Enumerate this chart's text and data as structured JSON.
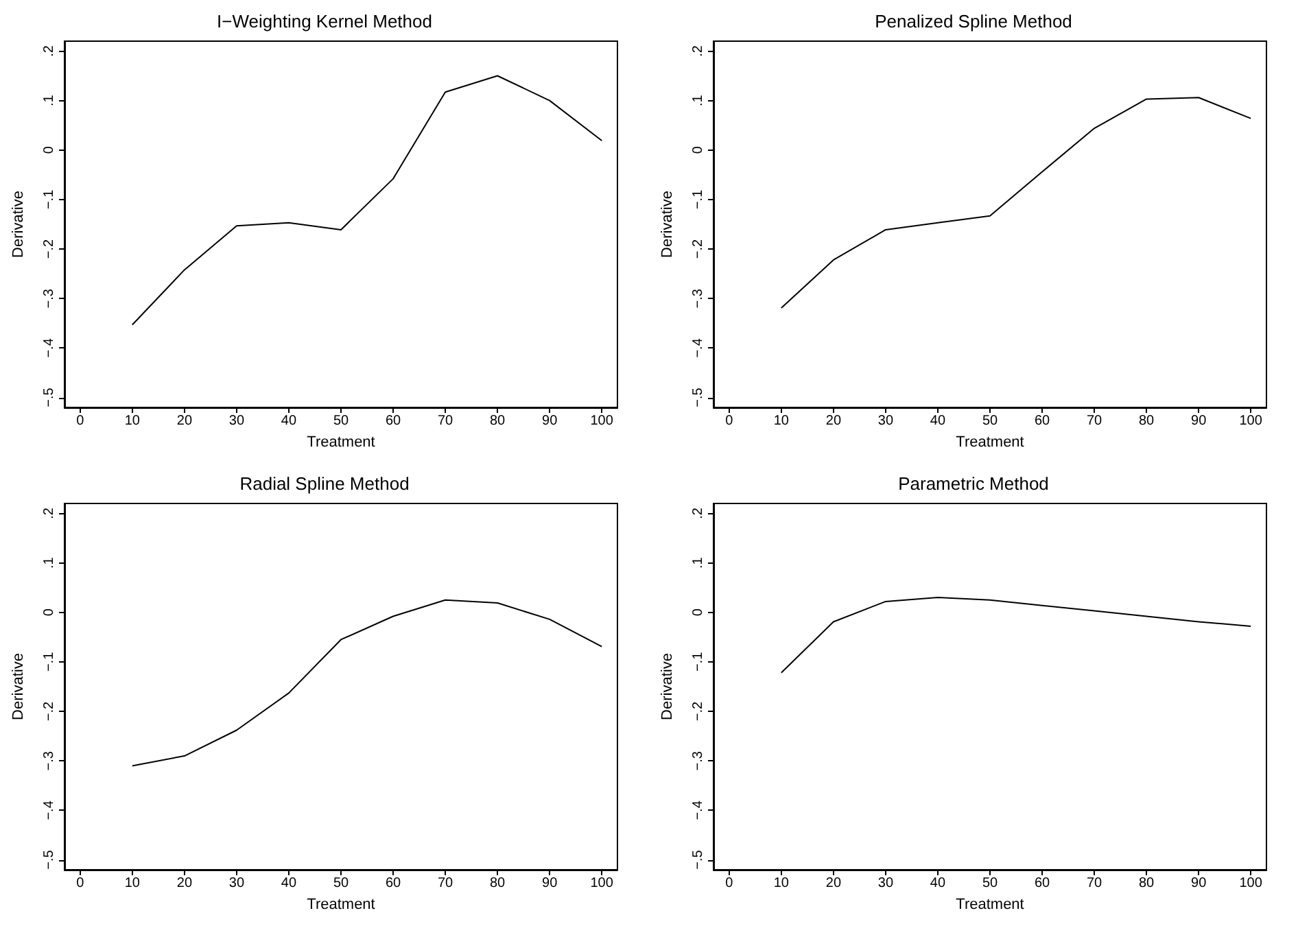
{
  "chart_data": [
    {
      "type": "line",
      "title": "I−Weighting Kernel Method",
      "xlabel": "Treatment",
      "ylabel": "Derivative",
      "x": [
        10,
        20,
        30,
        40,
        50,
        60,
        70,
        80,
        90,
        100
      ],
      "series": [
        {
          "color": "#000000",
          "values": [
            -0.353,
            -0.242,
            -0.153,
            -0.147,
            -0.161,
            -0.058,
            0.117,
            0.15,
            0.1,
            0.019
          ]
        }
      ],
      "xlim": [
        -3,
        103
      ],
      "xticks": [
        0,
        10,
        20,
        30,
        40,
        50,
        60,
        70,
        80,
        90,
        100
      ],
      "ylim": [
        -0.52,
        0.22
      ],
      "yticks": [
        {
          "value": -0.5,
          "label": "−.5"
        },
        {
          "value": -0.4,
          "label": "−.4"
        },
        {
          "value": -0.3,
          "label": "−.3"
        },
        {
          "value": -0.2,
          "label": "−.2"
        },
        {
          "value": -0.1,
          "label": "−.1"
        },
        {
          "value": 0,
          "label": "0"
        },
        {
          "value": 0.1,
          "label": ".1"
        },
        {
          "value": 0.2,
          "label": ".2"
        }
      ],
      "grid": false,
      "marker": "none",
      "line_style": "solid"
    },
    {
      "type": "line",
      "title": "Penalized Spline Method",
      "xlabel": "Treatment",
      "ylabel": "Derivative",
      "x": [
        10,
        20,
        30,
        40,
        50,
        60,
        70,
        80,
        90,
        100
      ],
      "series": [
        {
          "color": "#000000",
          "values": [
            -0.319,
            -0.222,
            -0.161,
            -0.147,
            -0.133,
            -0.044,
            0.044,
            0.103,
            0.106,
            0.064
          ]
        }
      ],
      "xlim": [
        -3,
        103
      ],
      "xticks": [
        0,
        10,
        20,
        30,
        40,
        50,
        60,
        70,
        80,
        90,
        100
      ],
      "ylim": [
        -0.52,
        0.22
      ],
      "yticks": [
        {
          "value": -0.5,
          "label": "−.5"
        },
        {
          "value": -0.4,
          "label": "−.4"
        },
        {
          "value": -0.3,
          "label": "−.3"
        },
        {
          "value": -0.2,
          "label": "−.2"
        },
        {
          "value": -0.1,
          "label": "−.1"
        },
        {
          "value": 0,
          "label": "0"
        },
        {
          "value": 0.1,
          "label": ".1"
        },
        {
          "value": 0.2,
          "label": ".2"
        }
      ],
      "grid": false,
      "marker": "none",
      "line_style": "solid"
    },
    {
      "type": "line",
      "title": "Radial Spline Method",
      "xlabel": "Treatment",
      "ylabel": "Derivative",
      "x": [
        10,
        20,
        30,
        40,
        50,
        60,
        70,
        80,
        90,
        100
      ],
      "series": [
        {
          "color": "#000000",
          "values": [
            -0.31,
            -0.29,
            -0.238,
            -0.163,
            -0.055,
            -0.008,
            0.025,
            0.019,
            -0.014,
            -0.069
          ]
        }
      ],
      "xlim": [
        -3,
        103
      ],
      "xticks": [
        0,
        10,
        20,
        30,
        40,
        50,
        60,
        70,
        80,
        90,
        100
      ],
      "ylim": [
        -0.52,
        0.22
      ],
      "yticks": [
        {
          "value": -0.5,
          "label": "−.5"
        },
        {
          "value": -0.4,
          "label": "−.4"
        },
        {
          "value": -0.3,
          "label": "−.3"
        },
        {
          "value": -0.2,
          "label": "−.2"
        },
        {
          "value": -0.1,
          "label": "−.1"
        },
        {
          "value": 0,
          "label": "0"
        },
        {
          "value": 0.1,
          "label": ".1"
        },
        {
          "value": 0.2,
          "label": ".2"
        }
      ],
      "grid": false,
      "marker": "none",
      "line_style": "solid"
    },
    {
      "type": "line",
      "title": "Parametric Method",
      "xlabel": "Treatment",
      "ylabel": "Derivative",
      "x": [
        10,
        20,
        30,
        40,
        50,
        60,
        70,
        80,
        90,
        100
      ],
      "series": [
        {
          "color": "#000000",
          "values": [
            -0.122,
            -0.019,
            0.022,
            0.03,
            0.025,
            0.014,
            0.003,
            -0.008,
            -0.019,
            -0.028
          ]
        }
      ],
      "xlim": [
        -3,
        103
      ],
      "xticks": [
        0,
        10,
        20,
        30,
        40,
        50,
        60,
        70,
        80,
        90,
        100
      ],
      "ylim": [
        -0.52,
        0.22
      ],
      "yticks": [
        {
          "value": -0.5,
          "label": "−.5"
        },
        {
          "value": -0.4,
          "label": "−.4"
        },
        {
          "value": -0.3,
          "label": "−.3"
        },
        {
          "value": -0.2,
          "label": "−.2"
        },
        {
          "value": -0.1,
          "label": "−.1"
        },
        {
          "value": 0,
          "label": "0"
        },
        {
          "value": 0.1,
          "label": ".1"
        },
        {
          "value": 0.2,
          "label": ".2"
        }
      ],
      "grid": false,
      "marker": "none",
      "line_style": "solid"
    }
  ]
}
